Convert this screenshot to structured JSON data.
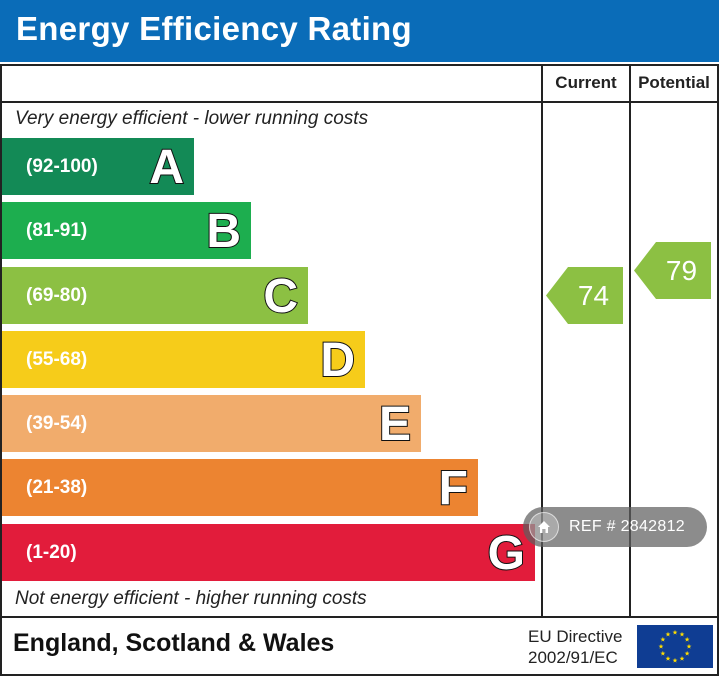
{
  "header": {
    "title": "Energy Efficiency Rating"
  },
  "columns": {
    "current": "Current",
    "potential": "Potential"
  },
  "captions": {
    "top": "Very energy efficient - lower running costs",
    "bottom": "Not energy efficient - higher running costs"
  },
  "chart_data": {
    "type": "bar",
    "title": "Energy Efficiency Rating",
    "categories": [
      "A",
      "B",
      "C",
      "D",
      "E",
      "F",
      "G"
    ],
    "ranges": [
      "(92-100)",
      "(81-91)",
      "(69-80)",
      "(55-68)",
      "(39-54)",
      "(21-38)",
      "(1-20)"
    ],
    "band_colors": [
      "#138a56",
      "#1dae4f",
      "#8cc043",
      "#f6cc1a",
      "#f1ac6c",
      "#ec8431",
      "#e21c3b"
    ],
    "current": {
      "label": "Current",
      "value": "74",
      "band": "C",
      "color": "#8cc043"
    },
    "potential": {
      "label": "Potential",
      "value": "79",
      "band": "C",
      "color": "#8cc043"
    }
  },
  "footer": {
    "region": "England, Scotland & Wales",
    "directive_line1": "EU Directive",
    "directive_line2": "2002/91/EC",
    "flag_icon": "eu-flag-icon"
  },
  "watermark": {
    "text": "REF # 2842812",
    "icon": "home-icon"
  }
}
